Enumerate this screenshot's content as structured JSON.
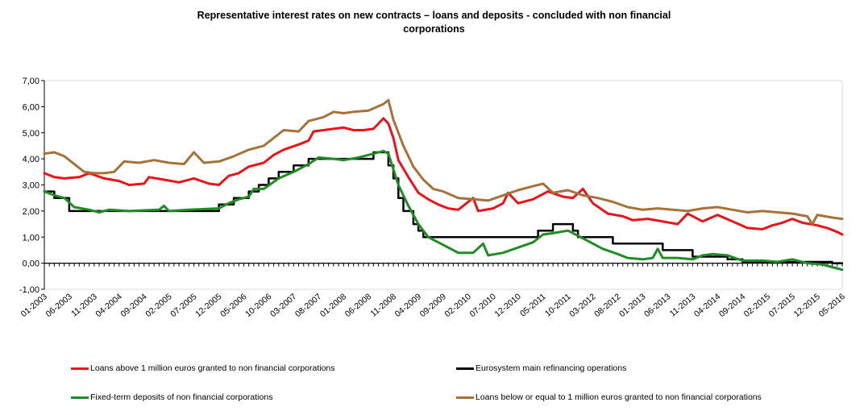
{
  "chart_data": {
    "type": "line",
    "title_line1": "Representative  interest rates on new contracts  – loans and deposits - concluded with non financial",
    "title_line2": "corporations",
    "ylim": [
      -1,
      7
    ],
    "yticks": [
      "-1,00",
      "0,00",
      "1,00",
      "2,00",
      "3,00",
      "4,00",
      "5,00",
      "6,00",
      "7,00"
    ],
    "grid": false,
    "legend_position": "bottom",
    "x_start": "2003-01",
    "x_end": "2016-05",
    "xtick_labels": [
      "01-2003",
      "06-2003",
      "11-2003",
      "04-2004",
      "09-2004",
      "02-2005",
      "07-2005",
      "12-2005",
      "05-2006",
      "10-2006",
      "03-2007",
      "08-2007",
      "01-2008",
      "06-2008",
      "11-2008",
      "04-2009",
      "09-2009",
      "02-2010",
      "07-2010",
      "12-2010",
      "05-2011",
      "10-2011",
      "03-2012",
      "08-2012",
      "01-2013",
      "06-2013",
      "11-2013",
      "04-2014",
      "09-2014",
      "02-2015",
      "07-2015",
      "12-2015",
      "05-2016"
    ],
    "series": [
      {
        "name": "Loans above 1 million euros granted to non financial corporations",
        "color": "#e8131b",
        "points": [
          [
            "2003-01",
            3.45
          ],
          [
            "2003-03",
            3.3
          ],
          [
            "2003-05",
            3.25
          ],
          [
            "2003-08",
            3.3
          ],
          [
            "2003-10",
            3.45
          ],
          [
            "2004-01",
            3.25
          ],
          [
            "2004-04",
            3.15
          ],
          [
            "2004-06",
            3.0
          ],
          [
            "2004-09",
            3.05
          ],
          [
            "2004-10",
            3.3
          ],
          [
            "2005-01",
            3.2
          ],
          [
            "2005-04",
            3.1
          ],
          [
            "2005-07",
            3.25
          ],
          [
            "2005-10",
            3.05
          ],
          [
            "2005-12",
            3.0
          ],
          [
            "2006-02",
            3.35
          ],
          [
            "2006-04",
            3.45
          ],
          [
            "2006-06",
            3.7
          ],
          [
            "2006-09",
            3.85
          ],
          [
            "2006-11",
            4.15
          ],
          [
            "2007-01",
            4.35
          ],
          [
            "2007-04",
            4.55
          ],
          [
            "2007-06",
            4.7
          ],
          [
            "2007-07",
            5.05
          ],
          [
            "2007-09",
            5.1
          ],
          [
            "2007-11",
            5.15
          ],
          [
            "2008-01",
            5.2
          ],
          [
            "2008-03",
            5.1
          ],
          [
            "2008-05",
            5.1
          ],
          [
            "2008-07",
            5.15
          ],
          [
            "2008-09",
            5.55
          ],
          [
            "2008-10",
            5.35
          ],
          [
            "2008-11",
            4.8
          ],
          [
            "2008-12",
            3.95
          ],
          [
            "2009-02",
            3.3
          ],
          [
            "2009-04",
            2.7
          ],
          [
            "2009-06",
            2.45
          ],
          [
            "2009-08",
            2.25
          ],
          [
            "2009-10",
            2.1
          ],
          [
            "2009-12",
            2.05
          ],
          [
            "2010-03",
            2.5
          ],
          [
            "2010-04",
            2.0
          ],
          [
            "2010-07",
            2.1
          ],
          [
            "2010-09",
            2.3
          ],
          [
            "2010-10",
            2.7
          ],
          [
            "2010-12",
            2.3
          ],
          [
            "2011-03",
            2.45
          ],
          [
            "2011-06",
            2.75
          ],
          [
            "2011-09",
            2.55
          ],
          [
            "2011-11",
            2.5
          ],
          [
            "2012-01",
            2.85
          ],
          [
            "2012-03",
            2.3
          ],
          [
            "2012-06",
            1.9
          ],
          [
            "2012-09",
            1.8
          ],
          [
            "2012-11",
            1.65
          ],
          [
            "2013-02",
            1.7
          ],
          [
            "2013-05",
            1.6
          ],
          [
            "2013-08",
            1.5
          ],
          [
            "2013-10",
            1.9
          ],
          [
            "2014-01",
            1.6
          ],
          [
            "2014-04",
            1.85
          ],
          [
            "2014-07",
            1.6
          ],
          [
            "2014-10",
            1.35
          ],
          [
            "2015-01",
            1.3
          ],
          [
            "2015-03",
            1.45
          ],
          [
            "2015-05",
            1.55
          ],
          [
            "2015-07",
            1.7
          ],
          [
            "2015-09",
            1.55
          ],
          [
            "2015-12",
            1.45
          ],
          [
            "2016-02",
            1.35
          ],
          [
            "2016-04",
            1.2
          ],
          [
            "2016-05",
            1.1
          ]
        ]
      },
      {
        "name": "Eurosystem main refinancing operations",
        "color": "#000000",
        "step": true,
        "points": [
          [
            "2003-01",
            2.75
          ],
          [
            "2003-03",
            2.5
          ],
          [
            "2003-06",
            2.0
          ],
          [
            "2005-12",
            2.25
          ],
          [
            "2006-03",
            2.5
          ],
          [
            "2006-06",
            2.75
          ],
          [
            "2006-08",
            3.0
          ],
          [
            "2006-10",
            3.25
          ],
          [
            "2006-12",
            3.5
          ],
          [
            "2007-03",
            3.75
          ],
          [
            "2007-06",
            4.0
          ],
          [
            "2008-07",
            4.25
          ],
          [
            "2008-10",
            3.75
          ],
          [
            "2008-11",
            3.25
          ],
          [
            "2008-12",
            2.5
          ],
          [
            "2009-01",
            2.0
          ],
          [
            "2009-03",
            1.5
          ],
          [
            "2009-04",
            1.25
          ],
          [
            "2009-05",
            1.0
          ],
          [
            "2011-04",
            1.25
          ],
          [
            "2011-07",
            1.5
          ],
          [
            "2011-11",
            1.25
          ],
          [
            "2011-12",
            1.0
          ],
          [
            "2012-07",
            0.75
          ],
          [
            "2013-05",
            0.5
          ],
          [
            "2013-11",
            0.25
          ],
          [
            "2014-06",
            0.15
          ],
          [
            "2014-09",
            0.05
          ],
          [
            "2016-03",
            0.0
          ],
          [
            "2016-05",
            0.0
          ]
        ]
      },
      {
        "name": "Fixed-term deposits of non financial corporations",
        "color": "#1f8c25",
        "points": [
          [
            "2003-01",
            2.75
          ],
          [
            "2003-03",
            2.6
          ],
          [
            "2003-05",
            2.5
          ],
          [
            "2003-07",
            2.15
          ],
          [
            "2003-10",
            2.05
          ],
          [
            "2003-12",
            1.95
          ],
          [
            "2004-02",
            2.05
          ],
          [
            "2004-06",
            2.0
          ],
          [
            "2004-12",
            2.05
          ],
          [
            "2005-01",
            2.2
          ],
          [
            "2005-02",
            2.0
          ],
          [
            "2005-06",
            2.05
          ],
          [
            "2005-12",
            2.1
          ],
          [
            "2006-02",
            2.3
          ],
          [
            "2006-04",
            2.45
          ],
          [
            "2006-06",
            2.55
          ],
          [
            "2006-07",
            2.85
          ],
          [
            "2006-09",
            2.85
          ],
          [
            "2006-12",
            3.25
          ],
          [
            "2007-03",
            3.5
          ],
          [
            "2007-06",
            3.8
          ],
          [
            "2007-08",
            4.05
          ],
          [
            "2007-11",
            4.0
          ],
          [
            "2008-01",
            3.95
          ],
          [
            "2008-04",
            4.05
          ],
          [
            "2008-06",
            4.15
          ],
          [
            "2008-09",
            4.3
          ],
          [
            "2008-10",
            4.2
          ],
          [
            "2008-11",
            3.6
          ],
          [
            "2008-12",
            3.0
          ],
          [
            "2009-02",
            2.2
          ],
          [
            "2009-04",
            1.5
          ],
          [
            "2009-06",
            1.0
          ],
          [
            "2009-08",
            0.8
          ],
          [
            "2009-10",
            0.6
          ],
          [
            "2009-12",
            0.4
          ],
          [
            "2010-03",
            0.4
          ],
          [
            "2010-05",
            0.75
          ],
          [
            "2010-06",
            0.3
          ],
          [
            "2010-09",
            0.4
          ],
          [
            "2010-12",
            0.6
          ],
          [
            "2011-03",
            0.8
          ],
          [
            "2011-05",
            1.1
          ],
          [
            "2011-07",
            1.15
          ],
          [
            "2011-10",
            1.25
          ],
          [
            "2011-12",
            1.05
          ],
          [
            "2012-03",
            0.75
          ],
          [
            "2012-05",
            0.55
          ],
          [
            "2012-08",
            0.35
          ],
          [
            "2012-10",
            0.2
          ],
          [
            "2013-01",
            0.15
          ],
          [
            "2013-03",
            0.2
          ],
          [
            "2013-04",
            0.55
          ],
          [
            "2013-05",
            0.2
          ],
          [
            "2013-08",
            0.2
          ],
          [
            "2013-11",
            0.15
          ],
          [
            "2014-01",
            0.3
          ],
          [
            "2014-03",
            0.35
          ],
          [
            "2014-06",
            0.3
          ],
          [
            "2014-09",
            0.1
          ],
          [
            "2015-01",
            0.1
          ],
          [
            "2015-04",
            0.05
          ],
          [
            "2015-07",
            0.15
          ],
          [
            "2015-10",
            0.0
          ],
          [
            "2016-01",
            -0.05
          ],
          [
            "2016-03",
            -0.15
          ],
          [
            "2016-05",
            -0.25
          ]
        ]
      },
      {
        "name": "Loans below or equal to 1 million euros granted to non financial corporations",
        "color": "#a6723a",
        "points": [
          [
            "2003-01",
            4.2
          ],
          [
            "2003-03",
            4.25
          ],
          [
            "2003-05",
            4.1
          ],
          [
            "2003-07",
            3.8
          ],
          [
            "2003-09",
            3.5
          ],
          [
            "2003-11",
            3.45
          ],
          [
            "2004-01",
            3.45
          ],
          [
            "2004-03",
            3.5
          ],
          [
            "2004-05",
            3.9
          ],
          [
            "2004-08",
            3.85
          ],
          [
            "2004-11",
            3.95
          ],
          [
            "2005-02",
            3.85
          ],
          [
            "2005-05",
            3.8
          ],
          [
            "2005-07",
            4.25
          ],
          [
            "2005-09",
            3.85
          ],
          [
            "2005-12",
            3.9
          ],
          [
            "2006-03",
            4.1
          ],
          [
            "2006-06",
            4.35
          ],
          [
            "2006-09",
            4.5
          ],
          [
            "2006-11",
            4.8
          ],
          [
            "2007-01",
            5.1
          ],
          [
            "2007-04",
            5.05
          ],
          [
            "2007-06",
            5.45
          ],
          [
            "2007-09",
            5.6
          ],
          [
            "2007-11",
            5.8
          ],
          [
            "2008-01",
            5.75
          ],
          [
            "2008-03",
            5.8
          ],
          [
            "2008-06",
            5.85
          ],
          [
            "2008-09",
            6.1
          ],
          [
            "2008-10",
            6.25
          ],
          [
            "2008-11",
            5.5
          ],
          [
            "2009-01",
            4.5
          ],
          [
            "2009-03",
            3.7
          ],
          [
            "2009-05",
            3.2
          ],
          [
            "2009-07",
            2.85
          ],
          [
            "2009-09",
            2.75
          ],
          [
            "2009-12",
            2.5
          ],
          [
            "2010-03",
            2.45
          ],
          [
            "2010-06",
            2.4
          ],
          [
            "2010-09",
            2.6
          ],
          [
            "2010-12",
            2.8
          ],
          [
            "2011-03",
            2.95
          ],
          [
            "2011-05",
            3.05
          ],
          [
            "2011-07",
            2.7
          ],
          [
            "2011-10",
            2.8
          ],
          [
            "2012-01",
            2.6
          ],
          [
            "2012-04",
            2.5
          ],
          [
            "2012-07",
            2.35
          ],
          [
            "2012-10",
            2.15
          ],
          [
            "2013-01",
            2.05
          ],
          [
            "2013-04",
            2.1
          ],
          [
            "2013-07",
            2.05
          ],
          [
            "2013-10",
            2.0
          ],
          [
            "2014-01",
            2.1
          ],
          [
            "2014-04",
            2.15
          ],
          [
            "2014-07",
            2.05
          ],
          [
            "2014-10",
            1.95
          ],
          [
            "2015-01",
            2.0
          ],
          [
            "2015-04",
            1.95
          ],
          [
            "2015-07",
            1.9
          ],
          [
            "2015-10",
            1.8
          ],
          [
            "2015-11",
            1.5
          ],
          [
            "2015-12",
            1.85
          ],
          [
            "2016-03",
            1.75
          ],
          [
            "2016-05",
            1.7
          ]
        ]
      }
    ]
  }
}
